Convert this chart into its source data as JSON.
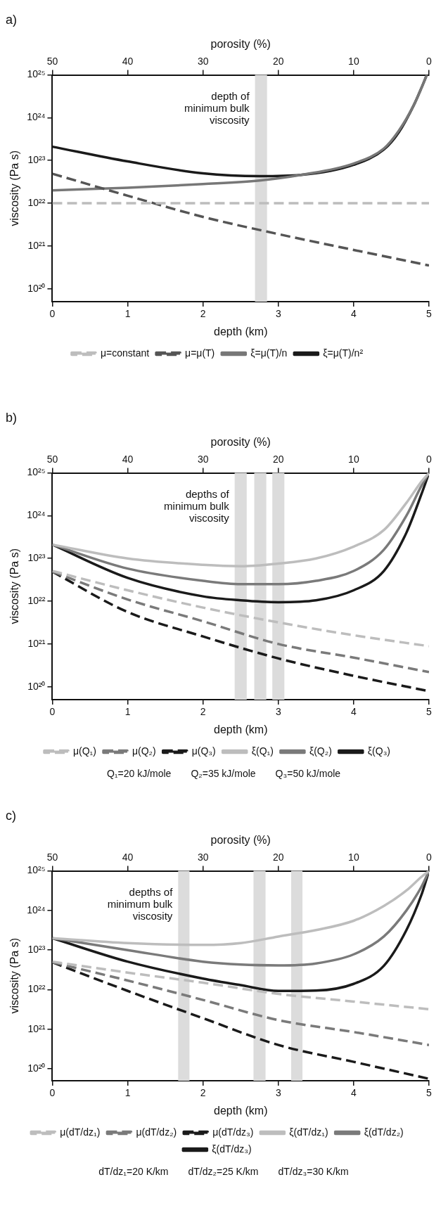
{
  "chart_data": [
    {
      "type": "line",
      "title": "a)",
      "xlabel": "depth (km)",
      "ylabel": "viscosity (Pa s)",
      "x2label": "porosity (%)",
      "xlim": [
        0,
        5
      ],
      "xticks": [
        0,
        1,
        2,
        3,
        4,
        5
      ],
      "x2lim": [
        50,
        0
      ],
      "x2ticks": [
        50,
        40,
        30,
        20,
        10,
        0
      ],
      "ylim": [
        5e+19,
        1e+25
      ],
      "yticks": [
        {
          "value": 1e+20,
          "label": "10²⁰"
        },
        {
          "value": 1e+21,
          "label": "10²¹"
        },
        {
          "value": 1e+22,
          "label": "10²²"
        },
        {
          "value": 1e+23,
          "label": "10²³"
        },
        {
          "value": 1e+24,
          "label": "10²⁴"
        },
        {
          "value": 1e+25,
          "label": "10²⁵"
        }
      ],
      "log": "y",
      "grid": false,
      "legend": "bottom",
      "marker": "none",
      "series": [
        {
          "name": "μ=constant",
          "color": "#bdbdbd",
          "line_style": "dashed",
          "x": [
            0,
            5
          ],
          "values": [
            1e+22,
            1e+22
          ]
        },
        {
          "name": "μ=μ(T)",
          "color": "#555555",
          "line_style": "dashed",
          "x": [
            0,
            1,
            2,
            3,
            4,
            5
          ],
          "values": [
            4.9e+22,
            1.5e+22,
            4.8e+21,
            1.9e+21,
            8.1e+20,
            3.5e+20
          ]
        },
        {
          "name": "ξ=μ(T)/n",
          "color": "#777777",
          "line_style": "solid",
          "x": [
            0,
            1,
            2,
            2.75,
            3.3,
            4,
            4.4,
            4.6,
            4.8,
            4.9,
            4.97
          ],
          "values": [
            2e+22,
            2.3e+22,
            2.8e+22,
            3.4e+22,
            4.6e+22,
            8.5e+22,
            1.9e+23,
            5e+23,
            2e+24,
            5e+24,
            1e+25
          ]
        },
        {
          "name": "ξ=μ(T)/n²",
          "color": "#1a1a1a",
          "line_style": "solid",
          "x": [
            0,
            1,
            2,
            2.75,
            3.3,
            4,
            4.4,
            4.6,
            4.8,
            4.9,
            4.97
          ],
          "values": [
            2.1e+23,
            9.5e+22,
            5e+22,
            4.3e+22,
            4.6e+22,
            7.9e+22,
            1.8e+23,
            4.6e+23,
            2e+24,
            5e+24,
            1e+25
          ]
        }
      ],
      "bands": [
        {
          "axis": "x",
          "from": 2.69,
          "to": 2.85,
          "color": "#dcdcdc",
          "label": "depth of minimum bulk viscosity"
        }
      ]
    },
    {
      "type": "line",
      "title": "b)",
      "xlabel": "depth (km)",
      "ylabel": "viscosity (Pa s)",
      "x2label": "porosity (%)",
      "xlim": [
        0,
        5
      ],
      "xticks": [
        0,
        1,
        2,
        3,
        4,
        5
      ],
      "x2lim": [
        50,
        0
      ],
      "x2ticks": [
        50,
        40,
        30,
        20,
        10,
        0
      ],
      "ylim": [
        5e+19,
        1e+25
      ],
      "yticks": [
        {
          "value": 1e+20,
          "label": "10²⁰"
        },
        {
          "value": 1e+21,
          "label": "10²¹"
        },
        {
          "value": 1e+22,
          "label": "10²²"
        },
        {
          "value": 1e+23,
          "label": "10²³"
        },
        {
          "value": 1e+24,
          "label": "10²⁴"
        },
        {
          "value": 1e+25,
          "label": "10²⁵"
        }
      ],
      "log": "y",
      "grid": false,
      "legend": "bottom",
      "marker": "none",
      "series": [
        {
          "name": "μ(Q₁)",
          "color": "#bdbdbd",
          "line_style": "dashed",
          "x": [
            0,
            1,
            2,
            3,
            4,
            5
          ],
          "values": [
            5.1e+22,
            1.8e+22,
            7.1e+21,
            3.2e+21,
            1.6e+21,
            8.9e+20
          ]
        },
        {
          "name": "μ(Q₂)",
          "color": "#7a7a7a",
          "line_style": "dashed",
          "x": [
            0,
            1,
            2,
            3,
            4,
            5
          ],
          "values": [
            4.9e+22,
            1.1e+22,
            3.4e+21,
            1e+21,
            4.8e+20,
            2.2e+20
          ]
        },
        {
          "name": "μ(Q₃)",
          "color": "#1a1a1a",
          "line_style": "dashed",
          "x": [
            0,
            1,
            2,
            3,
            4,
            5
          ],
          "values": [
            4.9e+22,
            5.6e+21,
            1.5e+21,
            4.6e+20,
            1.8e+20,
            7.9e+19
          ]
        },
        {
          "name": "ξ(Q₁)",
          "color": "#bdbdbd",
          "line_style": "solid",
          "x": [
            0,
            1,
            2,
            2.5,
            3,
            3.5,
            4,
            4.4,
            4.7,
            4.9,
            5
          ],
          "values": [
            2.1e+23,
            1e+23,
            7.1e+22,
            6.6e+22,
            7.6e+22,
            1e+23,
            1.9e+23,
            4.6e+23,
            2e+24,
            6.3e+24,
            1e+25
          ]
        },
        {
          "name": "ξ(Q₂)",
          "color": "#7a7a7a",
          "line_style": "solid",
          "x": [
            0,
            1,
            2,
            2.5,
            3,
            3.5,
            4,
            4.4,
            4.7,
            4.9,
            5
          ],
          "values": [
            2.1e+23,
            5.8e+22,
            3e+22,
            2.5e+22,
            2.5e+22,
            3e+22,
            5.1e+22,
            1.6e+23,
            1e+24,
            5e+24,
            1e+25
          ]
        },
        {
          "name": "ξ(Q₃)",
          "color": "#1a1a1a",
          "line_style": "solid",
          "x": [
            0,
            1,
            2,
            2.5,
            3,
            3.5,
            4,
            4.4,
            4.7,
            4.9,
            5
          ],
          "values": [
            2.1e+23,
            3.5e+22,
            1.3e+22,
            1.05e+22,
            9.5e+21,
            1.05e+22,
            1.8e+22,
            5.1e+22,
            4e+23,
            3.2e+24,
            1e+25
          ]
        }
      ],
      "bands": [
        {
          "axis": "x",
          "from": 2.42,
          "to": 2.58,
          "color": "#dcdcdc",
          "label": "depths of minimum bulk viscosity"
        },
        {
          "axis": "x",
          "from": 2.68,
          "to": 2.84,
          "color": "#dcdcdc"
        },
        {
          "axis": "x",
          "from": 2.92,
          "to": 3.08,
          "color": "#dcdcdc"
        }
      ],
      "annotations": [
        "Q₁=20 kJ/mole",
        "Q₂=35 kJ/mole",
        "Q₃=50 kJ/mole"
      ]
    },
    {
      "type": "line",
      "title": "c)",
      "xlabel": "depth (km)",
      "ylabel": "viscosity (Pa s)",
      "x2label": "porosity (%)",
      "xlim": [
        0,
        5
      ],
      "xticks": [
        0,
        1,
        2,
        3,
        4,
        5
      ],
      "x2lim": [
        50,
        0
      ],
      "x2ticks": [
        50,
        40,
        30,
        20,
        10,
        0
      ],
      "ylim": [
        5e+19,
        1e+25
      ],
      "yticks": [
        {
          "value": 1e+20,
          "label": "10²⁰"
        },
        {
          "value": 1e+21,
          "label": "10²¹"
        },
        {
          "value": 1e+22,
          "label": "10²²"
        },
        {
          "value": 1e+23,
          "label": "10²³"
        },
        {
          "value": 1e+24,
          "label": "10²⁴"
        },
        {
          "value": 1e+25,
          "label": "10²⁵"
        }
      ],
      "log": "y",
      "grid": false,
      "legend": "bottom",
      "marker": "none",
      "series": [
        {
          "name": "μ(dT/dz₁)",
          "color": "#bdbdbd",
          "line_style": "dashed",
          "x": [
            0,
            1,
            2,
            3,
            4,
            5
          ],
          "values": [
            5.1e+22,
            2.7e+22,
            1.5e+22,
            7.8e+21,
            5e+21,
            3.2e+21
          ]
        },
        {
          "name": "μ(dT/dz₂)",
          "color": "#7a7a7a",
          "line_style": "dashed",
          "x": [
            0,
            1,
            2,
            3,
            4,
            5
          ],
          "values": [
            4.9e+22,
            1.7e+22,
            5.5e+21,
            1.7e+21,
            8.5e+20,
            4e+20
          ]
        },
        {
          "name": "μ(dT/dz₃)",
          "color": "#1a1a1a",
          "line_style": "dashed",
          "x": [
            0,
            1,
            2,
            3,
            4,
            5
          ],
          "values": [
            4.9e+22,
            9.3e+21,
            1.9e+21,
            4e+20,
            1.5e+20,
            5.6e+19
          ]
        },
        {
          "name": "ξ(dT/dz₁)",
          "color": "#bdbdbd",
          "line_style": "solid",
          "x": [
            0,
            1,
            2,
            2.5,
            3,
            3.5,
            4,
            4.4,
            4.7,
            4.9,
            5
          ],
          "values": [
            2e+23,
            1.5e+23,
            1.35e+23,
            1.5e+23,
            2.2e+23,
            3.2e+23,
            5.5e+23,
            1.3e+24,
            3.2e+24,
            7.1e+24,
            1e+25
          ]
        },
        {
          "name": "ξ(dT/dz₂)",
          "color": "#7a7a7a",
          "line_style": "solid",
          "x": [
            0,
            1,
            2,
            2.5,
            3,
            3.5,
            4,
            4.4,
            4.7,
            4.9,
            5
          ],
          "values": [
            2e+23,
            1e+23,
            5.1e+22,
            4.3e+22,
            4.1e+22,
            4.6e+22,
            7.8e+22,
            2.2e+23,
            1e+24,
            4e+24,
            1e+25
          ]
        },
        {
          "name": "ξ(dT/dz₃)",
          "color": "#1a1a1a",
          "line_style": "solid",
          "x": [
            0,
            1,
            2,
            2.5,
            3,
            3.5,
            4,
            4.4,
            4.7,
            4.9,
            5
          ],
          "values": [
            2e+23,
            5.1e+22,
            1.9e+22,
            1.3e+22,
            9.3e+21,
            9.5e+21,
            1.4e+22,
            4e+22,
            3.2e+23,
            2.5e+24,
            1e+25
          ]
        }
      ],
      "bands": [
        {
          "axis": "x",
          "from": 1.67,
          "to": 1.82,
          "color": "#dcdcdc",
          "label": "depths of minimum bulk viscosity"
        },
        {
          "axis": "x",
          "from": 2.67,
          "to": 2.83,
          "color": "#dcdcdc"
        },
        {
          "axis": "x",
          "from": 3.17,
          "to": 3.32,
          "color": "#dcdcdc"
        }
      ],
      "annotations": [
        "dT/dz₁=20 K/km",
        "dT/dz₂=25 K/km",
        "dT/dz₃=30 K/km"
      ]
    }
  ]
}
